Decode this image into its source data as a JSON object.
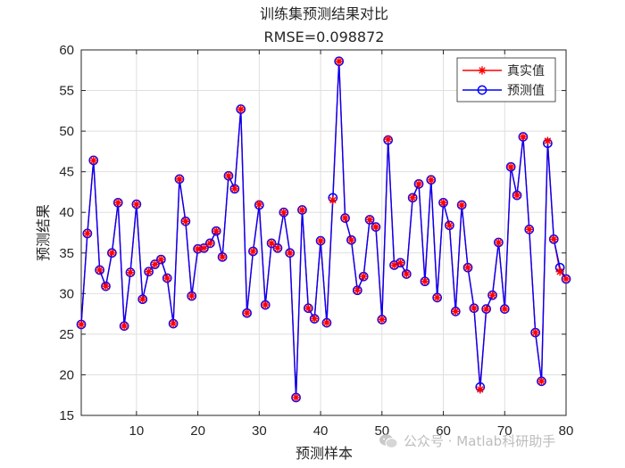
{
  "chart_data": {
    "type": "line",
    "title": "训练集预测结果对比",
    "subtitle": "RMSE=0.098872",
    "xlabel": "预测样本",
    "ylabel": "预测结果",
    "xlim": [
      1,
      80
    ],
    "ylim": [
      15,
      60
    ],
    "xticks": [
      10,
      20,
      30,
      40,
      50,
      60,
      70,
      80
    ],
    "yticks": [
      15,
      20,
      25,
      30,
      35,
      40,
      45,
      50,
      55,
      60
    ],
    "grid": true,
    "legend_position": "top-right",
    "x": [
      1,
      2,
      3,
      4,
      5,
      6,
      7,
      8,
      9,
      10,
      11,
      12,
      13,
      14,
      15,
      16,
      17,
      18,
      19,
      20,
      21,
      22,
      23,
      24,
      25,
      26,
      27,
      28,
      29,
      30,
      31,
      32,
      33,
      34,
      35,
      36,
      37,
      38,
      39,
      40,
      41,
      42,
      43,
      44,
      45,
      46,
      47,
      48,
      49,
      50,
      51,
      52,
      53,
      54,
      55,
      56,
      57,
      58,
      59,
      60,
      61,
      62,
      63,
      64,
      65,
      66,
      67,
      68,
      69,
      70,
      71,
      72,
      73,
      74,
      75,
      76,
      77,
      78,
      79,
      80
    ],
    "series": [
      {
        "name": "真实值",
        "color": "#ff0000",
        "marker": "asterisk",
        "values": [
          26.2,
          37.4,
          46.4,
          32.9,
          30.9,
          35.0,
          41.2,
          26.0,
          32.6,
          41.0,
          29.3,
          32.7,
          33.6,
          34.2,
          31.9,
          26.3,
          44.1,
          38.9,
          29.7,
          35.5,
          35.6,
          36.2,
          37.7,
          34.5,
          44.5,
          42.9,
          52.7,
          27.6,
          35.2,
          41.0,
          28.6,
          36.2,
          35.6,
          40.0,
          35.0,
          17.2,
          40.3,
          28.2,
          26.9,
          36.5,
          26.4,
          41.5,
          58.6,
          39.3,
          36.6,
          30.4,
          32.1,
          39.1,
          38.2,
          26.8,
          49.0,
          33.5,
          33.8,
          32.4,
          41.8,
          43.5,
          31.5,
          44.0,
          29.5,
          41.2,
          38.4,
          27.8,
          40.9,
          33.2,
          28.2,
          18.2,
          28.1,
          29.8,
          36.3,
          28.1,
          45.6,
          42.1,
          49.3,
          37.9,
          25.2,
          19.2,
          48.8,
          36.7,
          32.7,
          31.8
        ]
      },
      {
        "name": "预测值",
        "color": "#0000ff",
        "marker": "circle",
        "values": [
          26.2,
          37.4,
          46.4,
          32.9,
          30.9,
          35.0,
          41.2,
          26.0,
          32.6,
          41.0,
          29.3,
          32.7,
          33.6,
          34.2,
          31.9,
          26.3,
          44.1,
          38.9,
          29.7,
          35.5,
          35.6,
          36.2,
          37.7,
          34.5,
          44.5,
          42.9,
          52.7,
          27.6,
          35.2,
          40.9,
          28.6,
          36.2,
          35.6,
          40.0,
          35.0,
          17.2,
          40.3,
          28.2,
          26.9,
          36.5,
          26.4,
          41.8,
          58.6,
          39.3,
          36.6,
          30.4,
          32.1,
          39.1,
          38.2,
          26.8,
          48.9,
          33.5,
          33.8,
          32.4,
          41.8,
          43.5,
          31.5,
          44.0,
          29.5,
          41.2,
          38.4,
          27.8,
          40.9,
          33.2,
          28.2,
          18.5,
          28.1,
          29.8,
          36.3,
          28.1,
          45.6,
          42.1,
          49.3,
          37.9,
          25.2,
          19.2,
          48.5,
          36.7,
          33.2,
          31.8
        ]
      }
    ]
  },
  "watermark": {
    "text": "公众号 · Matlab科研助手",
    "icon": "wechat-icon"
  }
}
